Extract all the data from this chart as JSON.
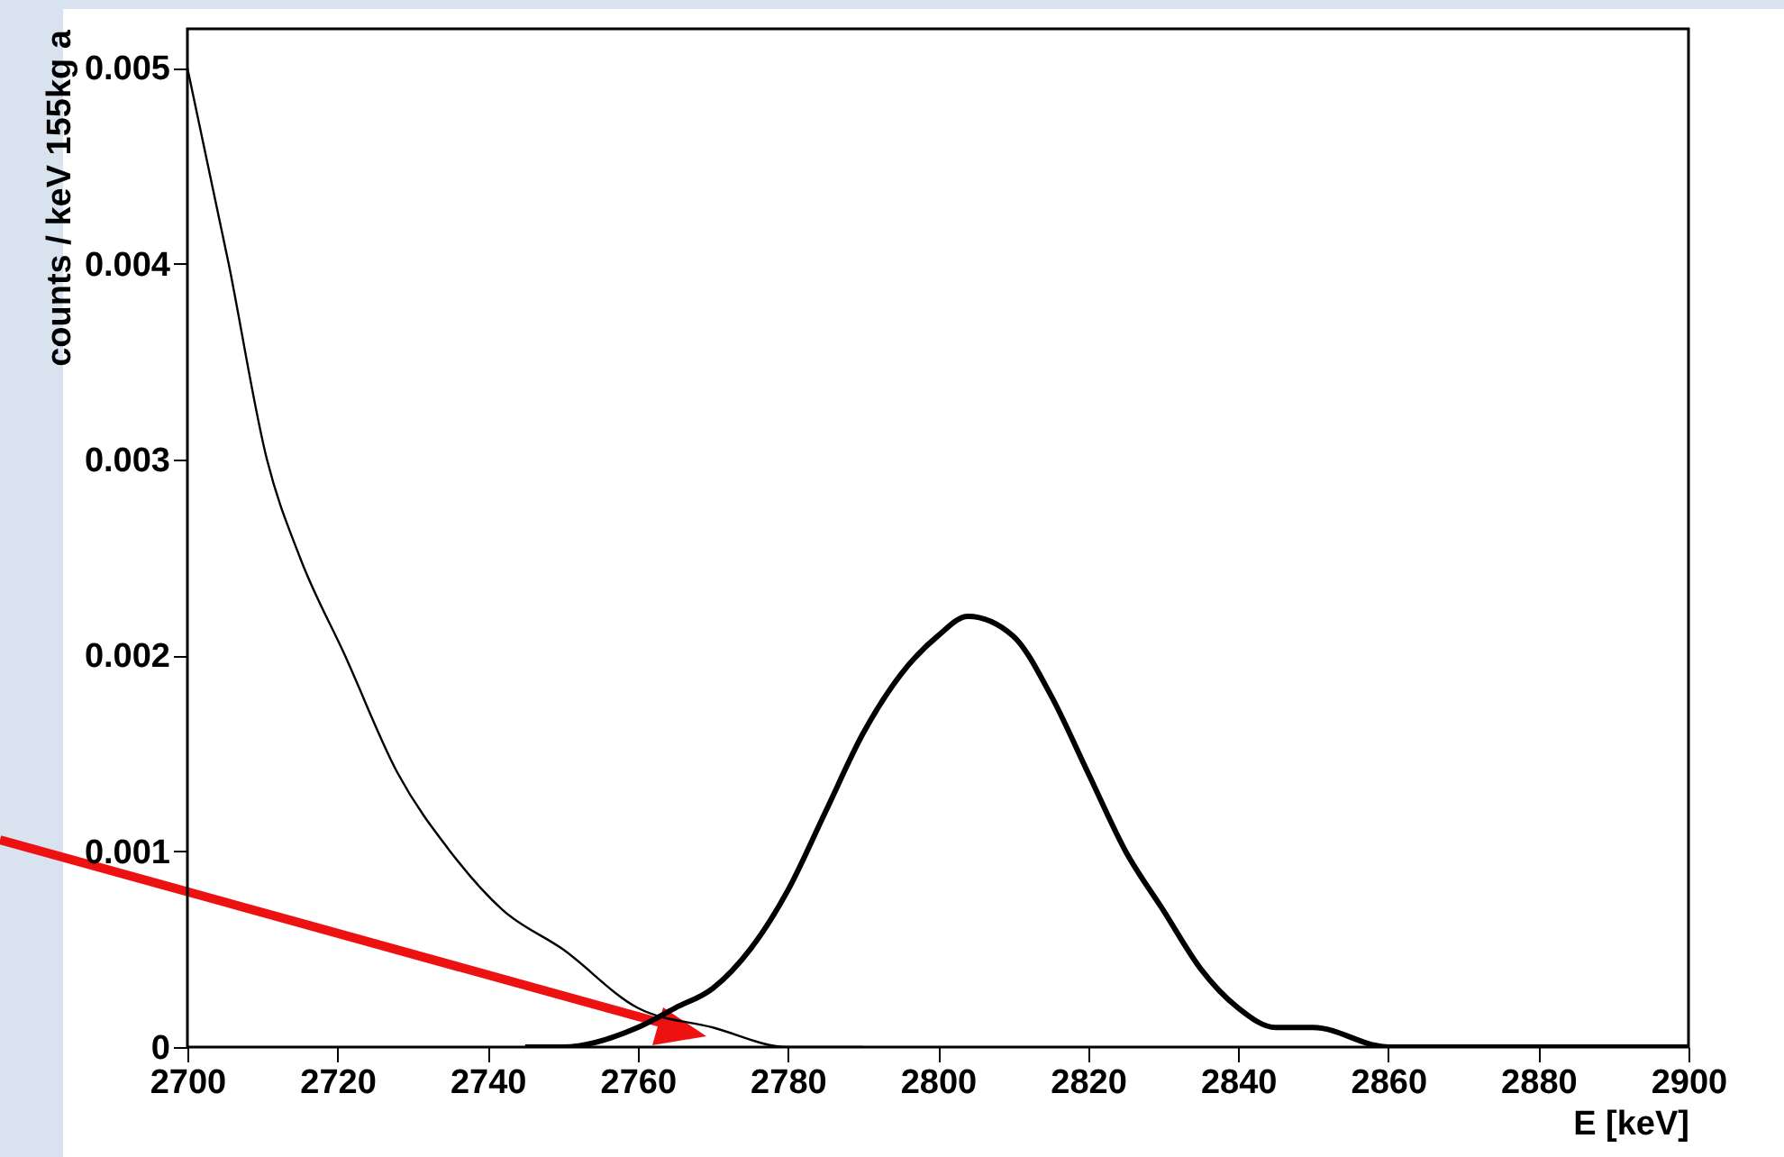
{
  "chart_data": {
    "type": "line",
    "xlabel": "E [keV]",
    "ylabel": "counts / keV 155kg a",
    "xlim": [
      2700,
      2900
    ],
    "ylim": [
      0,
      0.0052
    ],
    "xticks": [
      2700,
      2720,
      2740,
      2760,
      2780,
      2800,
      2820,
      2840,
      2860,
      2880,
      2900
    ],
    "yticks": [
      0,
      0.001,
      0.002,
      0.003,
      0.004,
      0.005
    ],
    "grid": false,
    "marker": "none",
    "line_style": "solid",
    "series": [
      {
        "color": "#000000",
        "x": [
          2700,
          2705.5,
          2710.6,
          2715,
          2721,
          2728,
          2735,
          2742,
          2750,
          2760,
          2770,
          2780,
          2790
        ],
        "values": [
          0.005,
          0.004,
          0.003,
          0.0025,
          0.002,
          0.0014,
          0.001,
          0.0007,
          0.0005,
          0.0002,
          0.0001,
          0,
          0
        ]
      },
      {
        "color": "#000000",
        "x": [
          2745,
          2750,
          2760,
          2765,
          2770,
          2775,
          2780,
          2785,
          2790,
          2795,
          2800,
          2804,
          2810,
          2815,
          2820,
          2825,
          2830,
          2835,
          2840,
          2845,
          2850,
          2860,
          2870,
          2900
        ],
        "values": [
          0,
          0,
          0.0001,
          0.0002,
          0.0003,
          0.0005,
          0.0008,
          0.0012,
          0.0016,
          0.0019,
          0.0021,
          0.0022,
          0.0021,
          0.0018,
          0.0014,
          0.001,
          0.0007,
          0.0004,
          0.0002,
          0.0001,
          0.0001,
          0,
          0,
          0
        ]
      }
    ]
  }
}
